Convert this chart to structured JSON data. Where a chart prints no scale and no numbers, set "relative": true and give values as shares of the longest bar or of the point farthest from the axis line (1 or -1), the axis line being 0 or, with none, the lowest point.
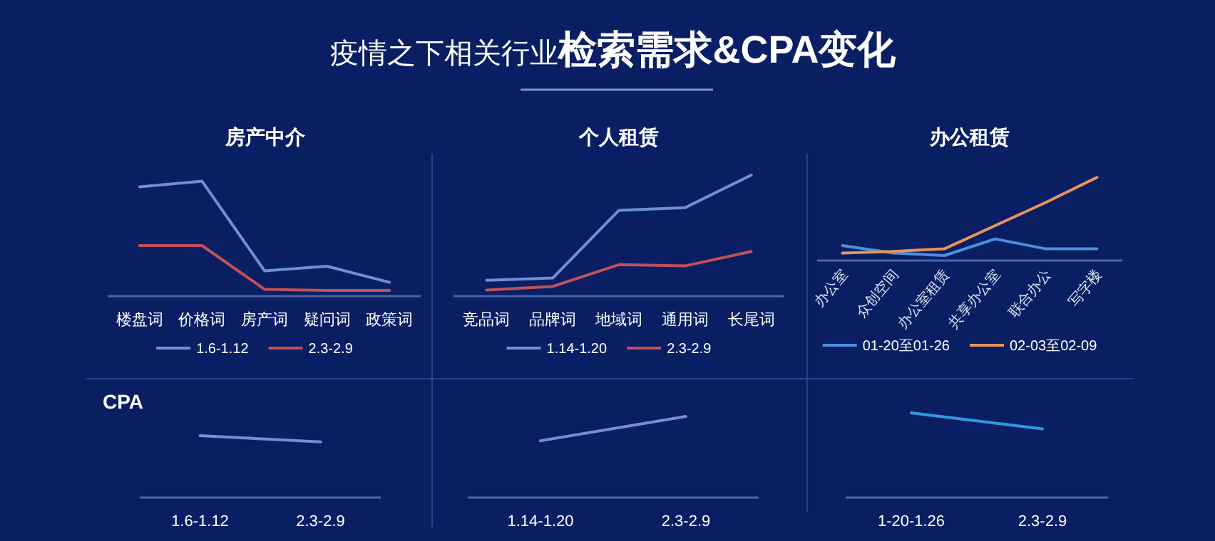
{
  "chart_data": [
    {
      "type": "other",
      "title": "疫情之下相关行业**检索需求&CPA变化**"
    },
    {
      "type": "line",
      "title": "房产中介",
      "categories": [
        "楼盘词",
        "价格词",
        "房产词",
        "疑问词",
        "政策词"
      ],
      "relative": true,
      "legend": "bottom",
      "series": [
        {
          "name": "1.6-1.12",
          "color": "#6f8fd8",
          "values": [
            0.95,
            1,
            0.22,
            0.26,
            0.12
          ]
        },
        {
          "name": "2.3-2.9",
          "color": "#c0505a",
          "values": [
            0.44,
            0.44,
            0.06,
            0.05,
            0.05
          ]
        }
      ]
    },
    {
      "type": "line",
      "title": "个人租赁",
      "categories": [
        "竞品词",
        "品牌词",
        "地域词",
        "通用词",
        "长尾词"
      ],
      "relative": true,
      "legend": "bottom",
      "series": [
        {
          "name": "1.14-1.20",
          "color": "#6f8fd8",
          "values": [
            0.13,
            0.15,
            0.71,
            0.73,
            1
          ]
        },
        {
          "name": "2.3-2.9",
          "color": "#c0505a",
          "values": [
            0.05,
            0.08,
            0.26,
            0.25,
            0.37
          ]
        }
      ]
    },
    {
      "type": "line",
      "title": "办公租赁",
      "categories": [
        "办公室",
        "众创空间",
        "办公室租赁",
        "共享办公室",
        "联合办公",
        "写字楼"
      ],
      "relative": true,
      "legend": "bottom",
      "series": [
        {
          "name": "01-20至01-26",
          "color": "#4a8fe0",
          "values": [
            0.18,
            0.09,
            0.06,
            0.26,
            0.14,
            0.14
          ]
        },
        {
          "name": "02-03至02-09",
          "color": "#e8935a",
          "values": [
            0.09,
            0.11,
            0.14,
            0.42,
            0.7,
            1
          ]
        }
      ]
    },
    {
      "type": "line",
      "title": "CPA",
      "categories": [
        "1.6-1.12",
        "2.3-2.9"
      ],
      "relative": true,
      "series": [
        {
          "color": "#6f8fd8",
          "values": [
            1,
            0.9
          ]
        }
      ]
    },
    {
      "type": "line",
      "categories": [
        "1.14-1.20",
        "2.3-2.9"
      ],
      "relative": true,
      "series": [
        {
          "color": "#6f8fd8",
          "values": [
            0.7,
            1
          ]
        }
      ]
    },
    {
      "type": "line",
      "categories": [
        "1-20-1.26",
        "2.3-2.9"
      ],
      "relative": true,
      "series": [
        {
          "color": "#2f9ae0",
          "values": [
            1,
            0.81
          ]
        }
      ]
    }
  ]
}
